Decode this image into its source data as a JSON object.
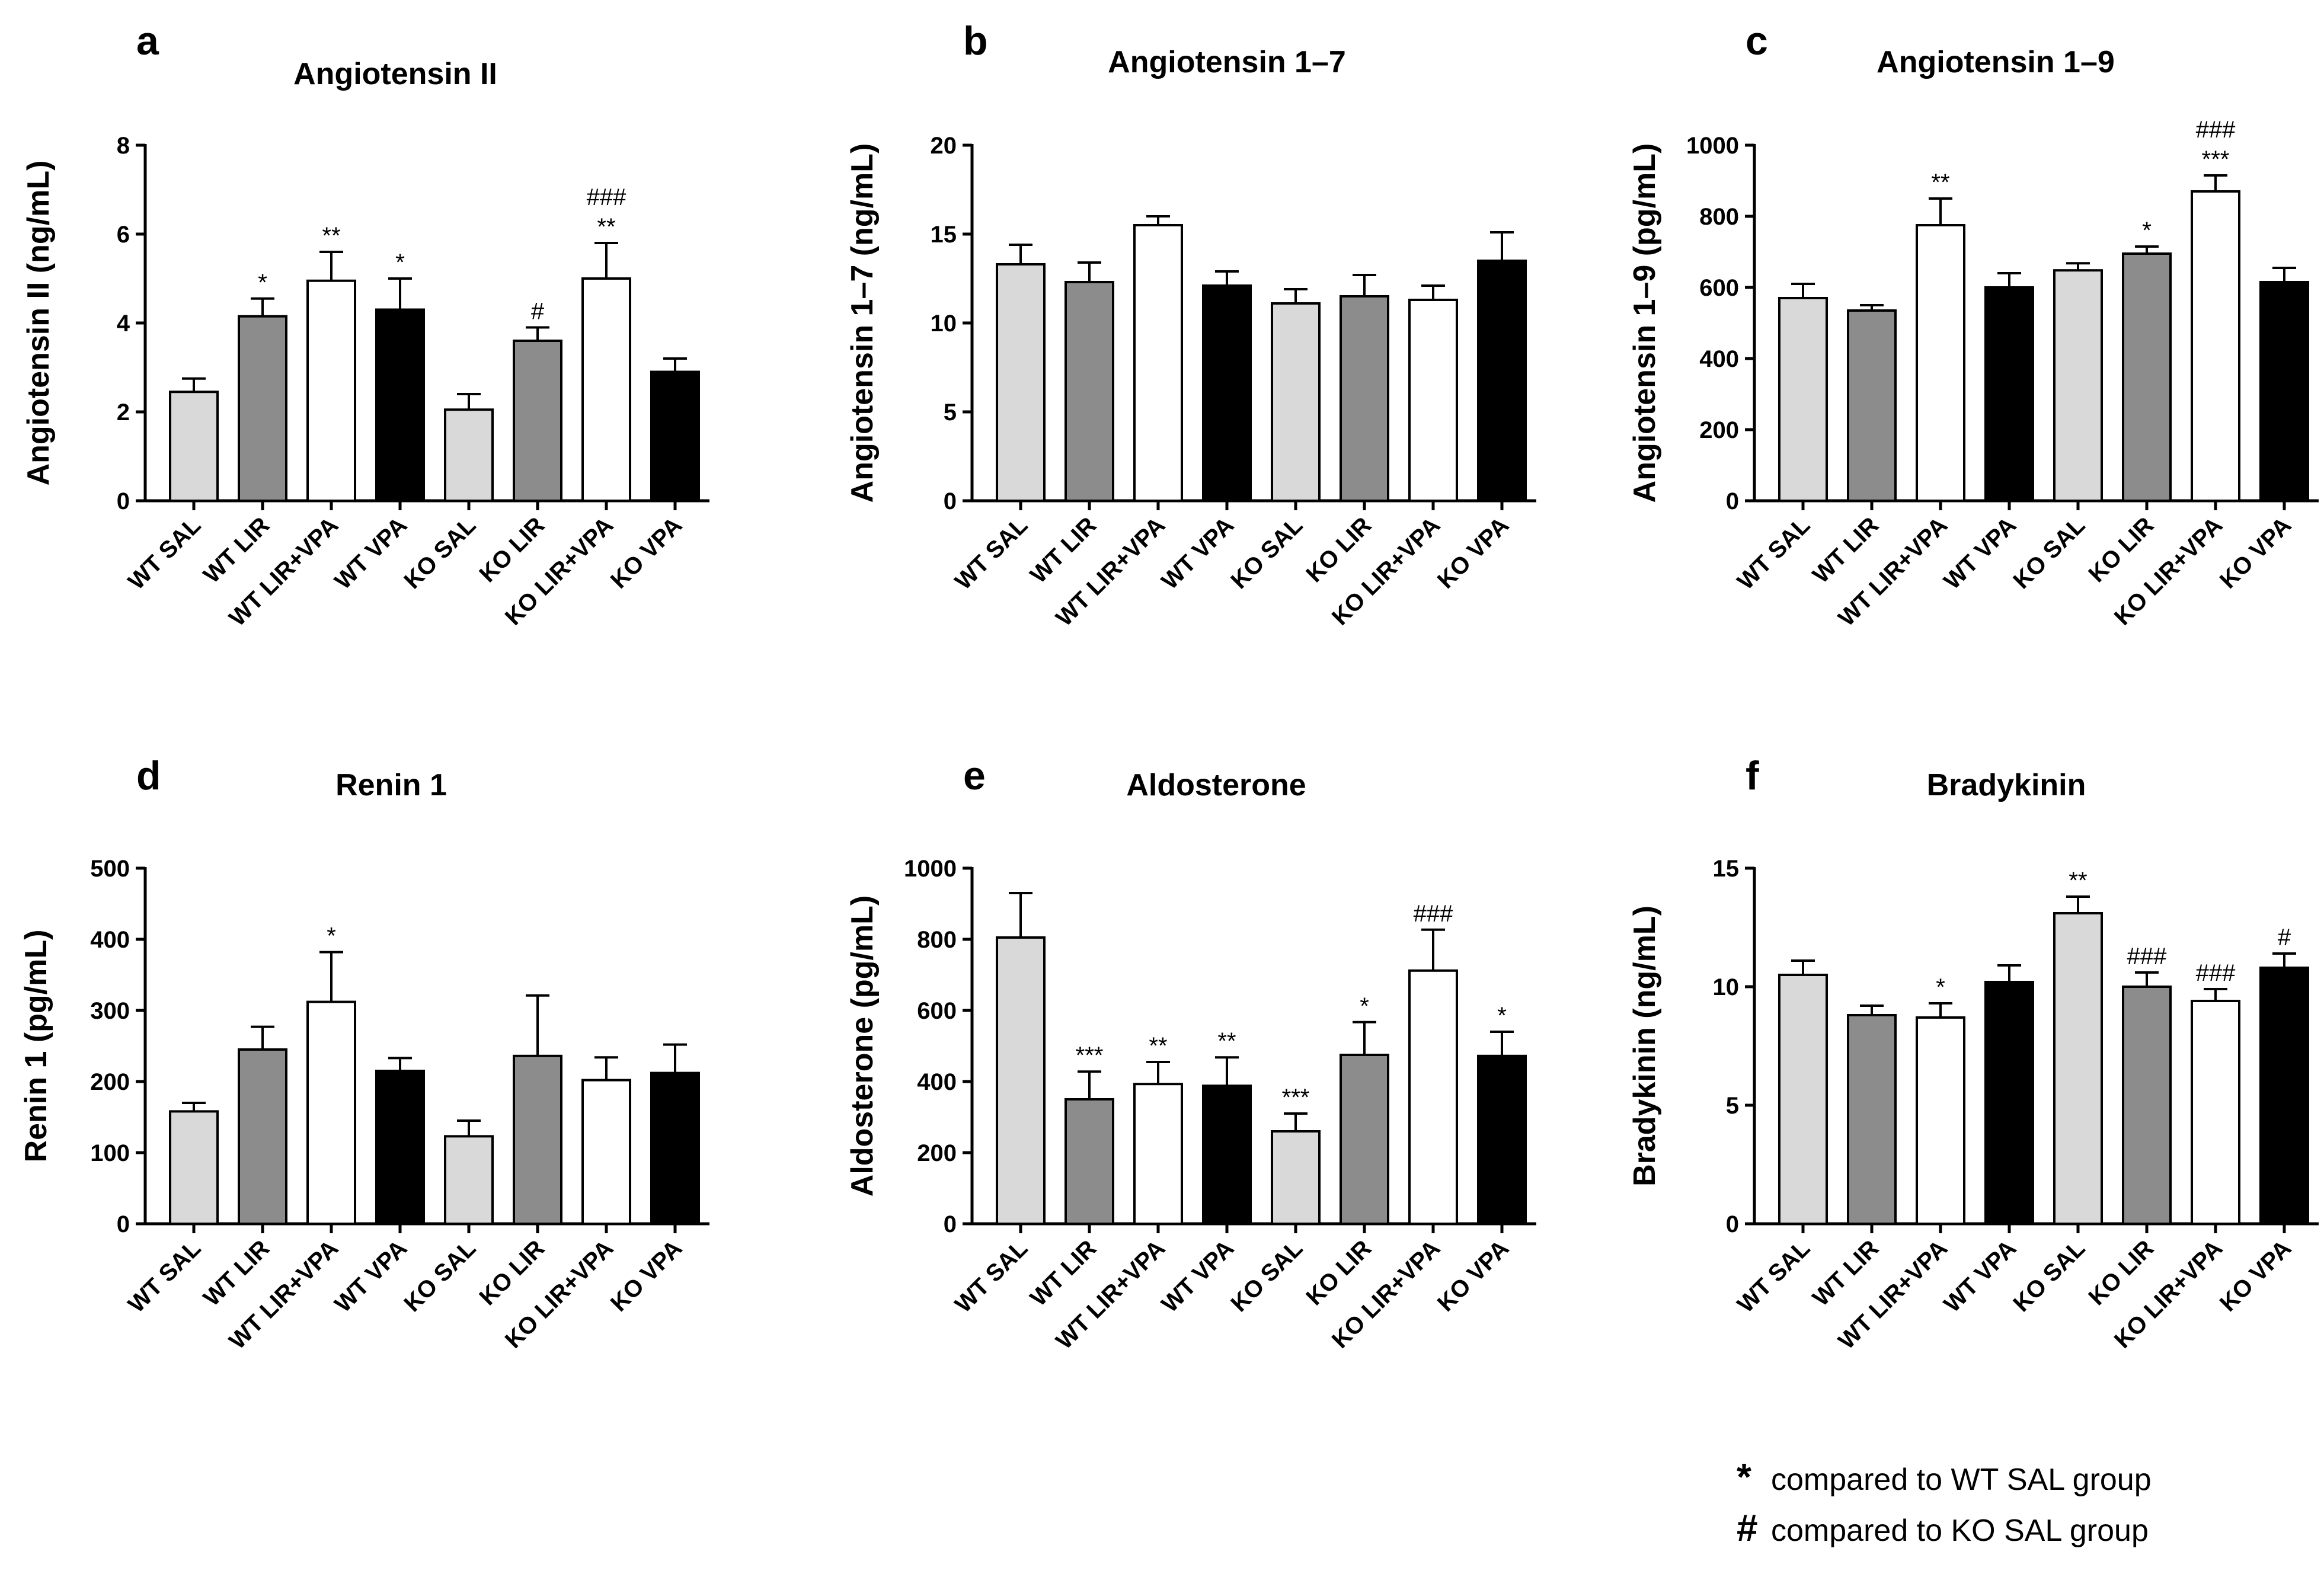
{
  "figure": {
    "legend": [
      {
        "symbol": "*",
        "text": "compared to WT SAL group"
      },
      {
        "symbol": "#",
        "text": "compared to KO SAL group"
      }
    ]
  },
  "chart_data": [
    {
      "panel": "a",
      "type": "bar",
      "title": "Angiotensin II",
      "ylabel": "Angiotensin II (ng/mL)",
      "ylim": [
        0,
        8
      ],
      "yticks": [
        0,
        2,
        4,
        6,
        8
      ],
      "categories": [
        "WT SAL",
        "WT LIR",
        "WT LIR+VPA",
        "WT VPA",
        "KO SAL",
        "KO LIR",
        "KO LIR+VPA",
        "KO VPA"
      ],
      "fills": [
        "#d9d9d9",
        "#8c8c8c",
        "#ffffff",
        "#000000",
        "#d9d9d9",
        "#8c8c8c",
        "#ffffff",
        "#000000"
      ],
      "values": [
        2.45,
        4.15,
        4.95,
        4.3,
        2.05,
        3.6,
        5.0,
        2.9
      ],
      "errors": [
        0.3,
        0.4,
        0.65,
        0.7,
        0.35,
        0.3,
        0.8,
        0.3
      ],
      "annotations": [
        [],
        [
          "*"
        ],
        [
          "**"
        ],
        [
          "*"
        ],
        [],
        [
          "#"
        ],
        [
          "**",
          "###"
        ],
        []
      ]
    },
    {
      "panel": "b",
      "type": "bar",
      "title": "Angiotensin 1–7",
      "ylabel": "Angiotensin 1–7 (ng/mL)",
      "ylim": [
        0,
        20
      ],
      "yticks": [
        0,
        5,
        10,
        15,
        20
      ],
      "categories": [
        "WT SAL",
        "WT LIR",
        "WT LIR+VPA",
        "WT VPA",
        "KO SAL",
        "KO LIR",
        "KO LIR+VPA",
        "KO VPA"
      ],
      "fills": [
        "#d9d9d9",
        "#8c8c8c",
        "#ffffff",
        "#000000",
        "#d9d9d9",
        "#8c8c8c",
        "#ffffff",
        "#000000"
      ],
      "values": [
        13.3,
        12.3,
        15.5,
        12.1,
        11.1,
        11.5,
        11.3,
        13.5
      ],
      "errors": [
        1.1,
        1.1,
        0.5,
        0.8,
        0.8,
        1.2,
        0.8,
        1.6
      ],
      "annotations": [
        [],
        [],
        [],
        [],
        [],
        [],
        [],
        []
      ]
    },
    {
      "panel": "c",
      "type": "bar",
      "title": "Angiotensin 1–9",
      "ylabel": "Angiotensin 1–9 (pg/mL)",
      "ylim": [
        0,
        1000
      ],
      "yticks": [
        0,
        200,
        400,
        600,
        800,
        1000
      ],
      "categories": [
        "WT SAL",
        "WT LIR",
        "WT LIR+VPA",
        "WT VPA",
        "KO SAL",
        "KO LIR",
        "KO LIR+VPA",
        "KO VPA"
      ],
      "fills": [
        "#d9d9d9",
        "#8c8c8c",
        "#ffffff",
        "#000000",
        "#d9d9d9",
        "#8c8c8c",
        "#ffffff",
        "#000000"
      ],
      "values": [
        570,
        535,
        775,
        600,
        648,
        695,
        870,
        615
      ],
      "errors": [
        40,
        15,
        75,
        40,
        20,
        20,
        45,
        40
      ],
      "annotations": [
        [],
        [],
        [
          "**"
        ],
        [],
        [],
        [
          "*"
        ],
        [
          "***",
          "###"
        ],
        []
      ]
    },
    {
      "panel": "d",
      "type": "bar",
      "title": "Renin 1",
      "ylabel": "Renin 1 (pg/mL)",
      "ylim": [
        0,
        500
      ],
      "yticks": [
        0,
        100,
        200,
        300,
        400,
        500
      ],
      "categories": [
        "WT SAL",
        "WT LIR",
        "WT LIR+VPA",
        "WT VPA",
        "KO SAL",
        "KO LIR",
        "KO LIR+VPA",
        "KO VPA"
      ],
      "fills": [
        "#d9d9d9",
        "#8c8c8c",
        "#ffffff",
        "#000000",
        "#d9d9d9",
        "#8c8c8c",
        "#ffffff",
        "#000000"
      ],
      "values": [
        158,
        245,
        312,
        215,
        123,
        236,
        202,
        212
      ],
      "errors": [
        12,
        32,
        70,
        18,
        22,
        85,
        32,
        40
      ],
      "annotations": [
        [],
        [],
        [
          "*"
        ],
        [],
        [],
        [],
        [],
        []
      ]
    },
    {
      "panel": "e",
      "type": "bar",
      "title": "Aldosterone",
      "ylabel": "Aldosterone (pg/mL)",
      "ylim": [
        0,
        1000
      ],
      "yticks": [
        0,
        200,
        400,
        600,
        800,
        1000
      ],
      "categories": [
        "WT SAL",
        "WT LIR",
        "WT LIR+VPA",
        "WT VPA",
        "KO SAL",
        "KO LIR",
        "KO LIR+VPA",
        "KO VPA"
      ],
      "fills": [
        "#d9d9d9",
        "#8c8c8c",
        "#ffffff",
        "#000000",
        "#d9d9d9",
        "#8c8c8c",
        "#ffffff",
        "#000000"
      ],
      "values": [
        805,
        350,
        393,
        388,
        260,
        475,
        712,
        472
      ],
      "errors": [
        125,
        78,
        62,
        80,
        50,
        92,
        115,
        68
      ],
      "annotations": [
        [],
        [
          "***"
        ],
        [
          "**"
        ],
        [
          "**"
        ],
        [
          "***"
        ],
        [
          "*"
        ],
        [
          "###"
        ],
        [
          "*"
        ]
      ]
    },
    {
      "panel": "f",
      "type": "bar",
      "title": "Bradykinin",
      "ylabel": "Bradykinin (ng/mL)",
      "ylim": [
        0,
        15
      ],
      "yticks": [
        0,
        5,
        10,
        15
      ],
      "categories": [
        "WT SAL",
        "WT LIR",
        "WT LIR+VPA",
        "WT VPA",
        "KO SAL",
        "KO LIR",
        "KO LIR+VPA",
        "KO VPA"
      ],
      "fills": [
        "#d9d9d9",
        "#8c8c8c",
        "#ffffff",
        "#000000",
        "#d9d9d9",
        "#8c8c8c",
        "#ffffff",
        "#000000"
      ],
      "values": [
        10.5,
        8.8,
        8.7,
        10.2,
        13.1,
        10.0,
        9.4,
        10.8
      ],
      "errors": [
        0.6,
        0.4,
        0.6,
        0.7,
        0.7,
        0.6,
        0.5,
        0.6
      ],
      "annotations": [
        [],
        [],
        [
          "*"
        ],
        [],
        [
          "**"
        ],
        [
          "###"
        ],
        [
          "###"
        ],
        [
          "#"
        ]
      ]
    }
  ]
}
